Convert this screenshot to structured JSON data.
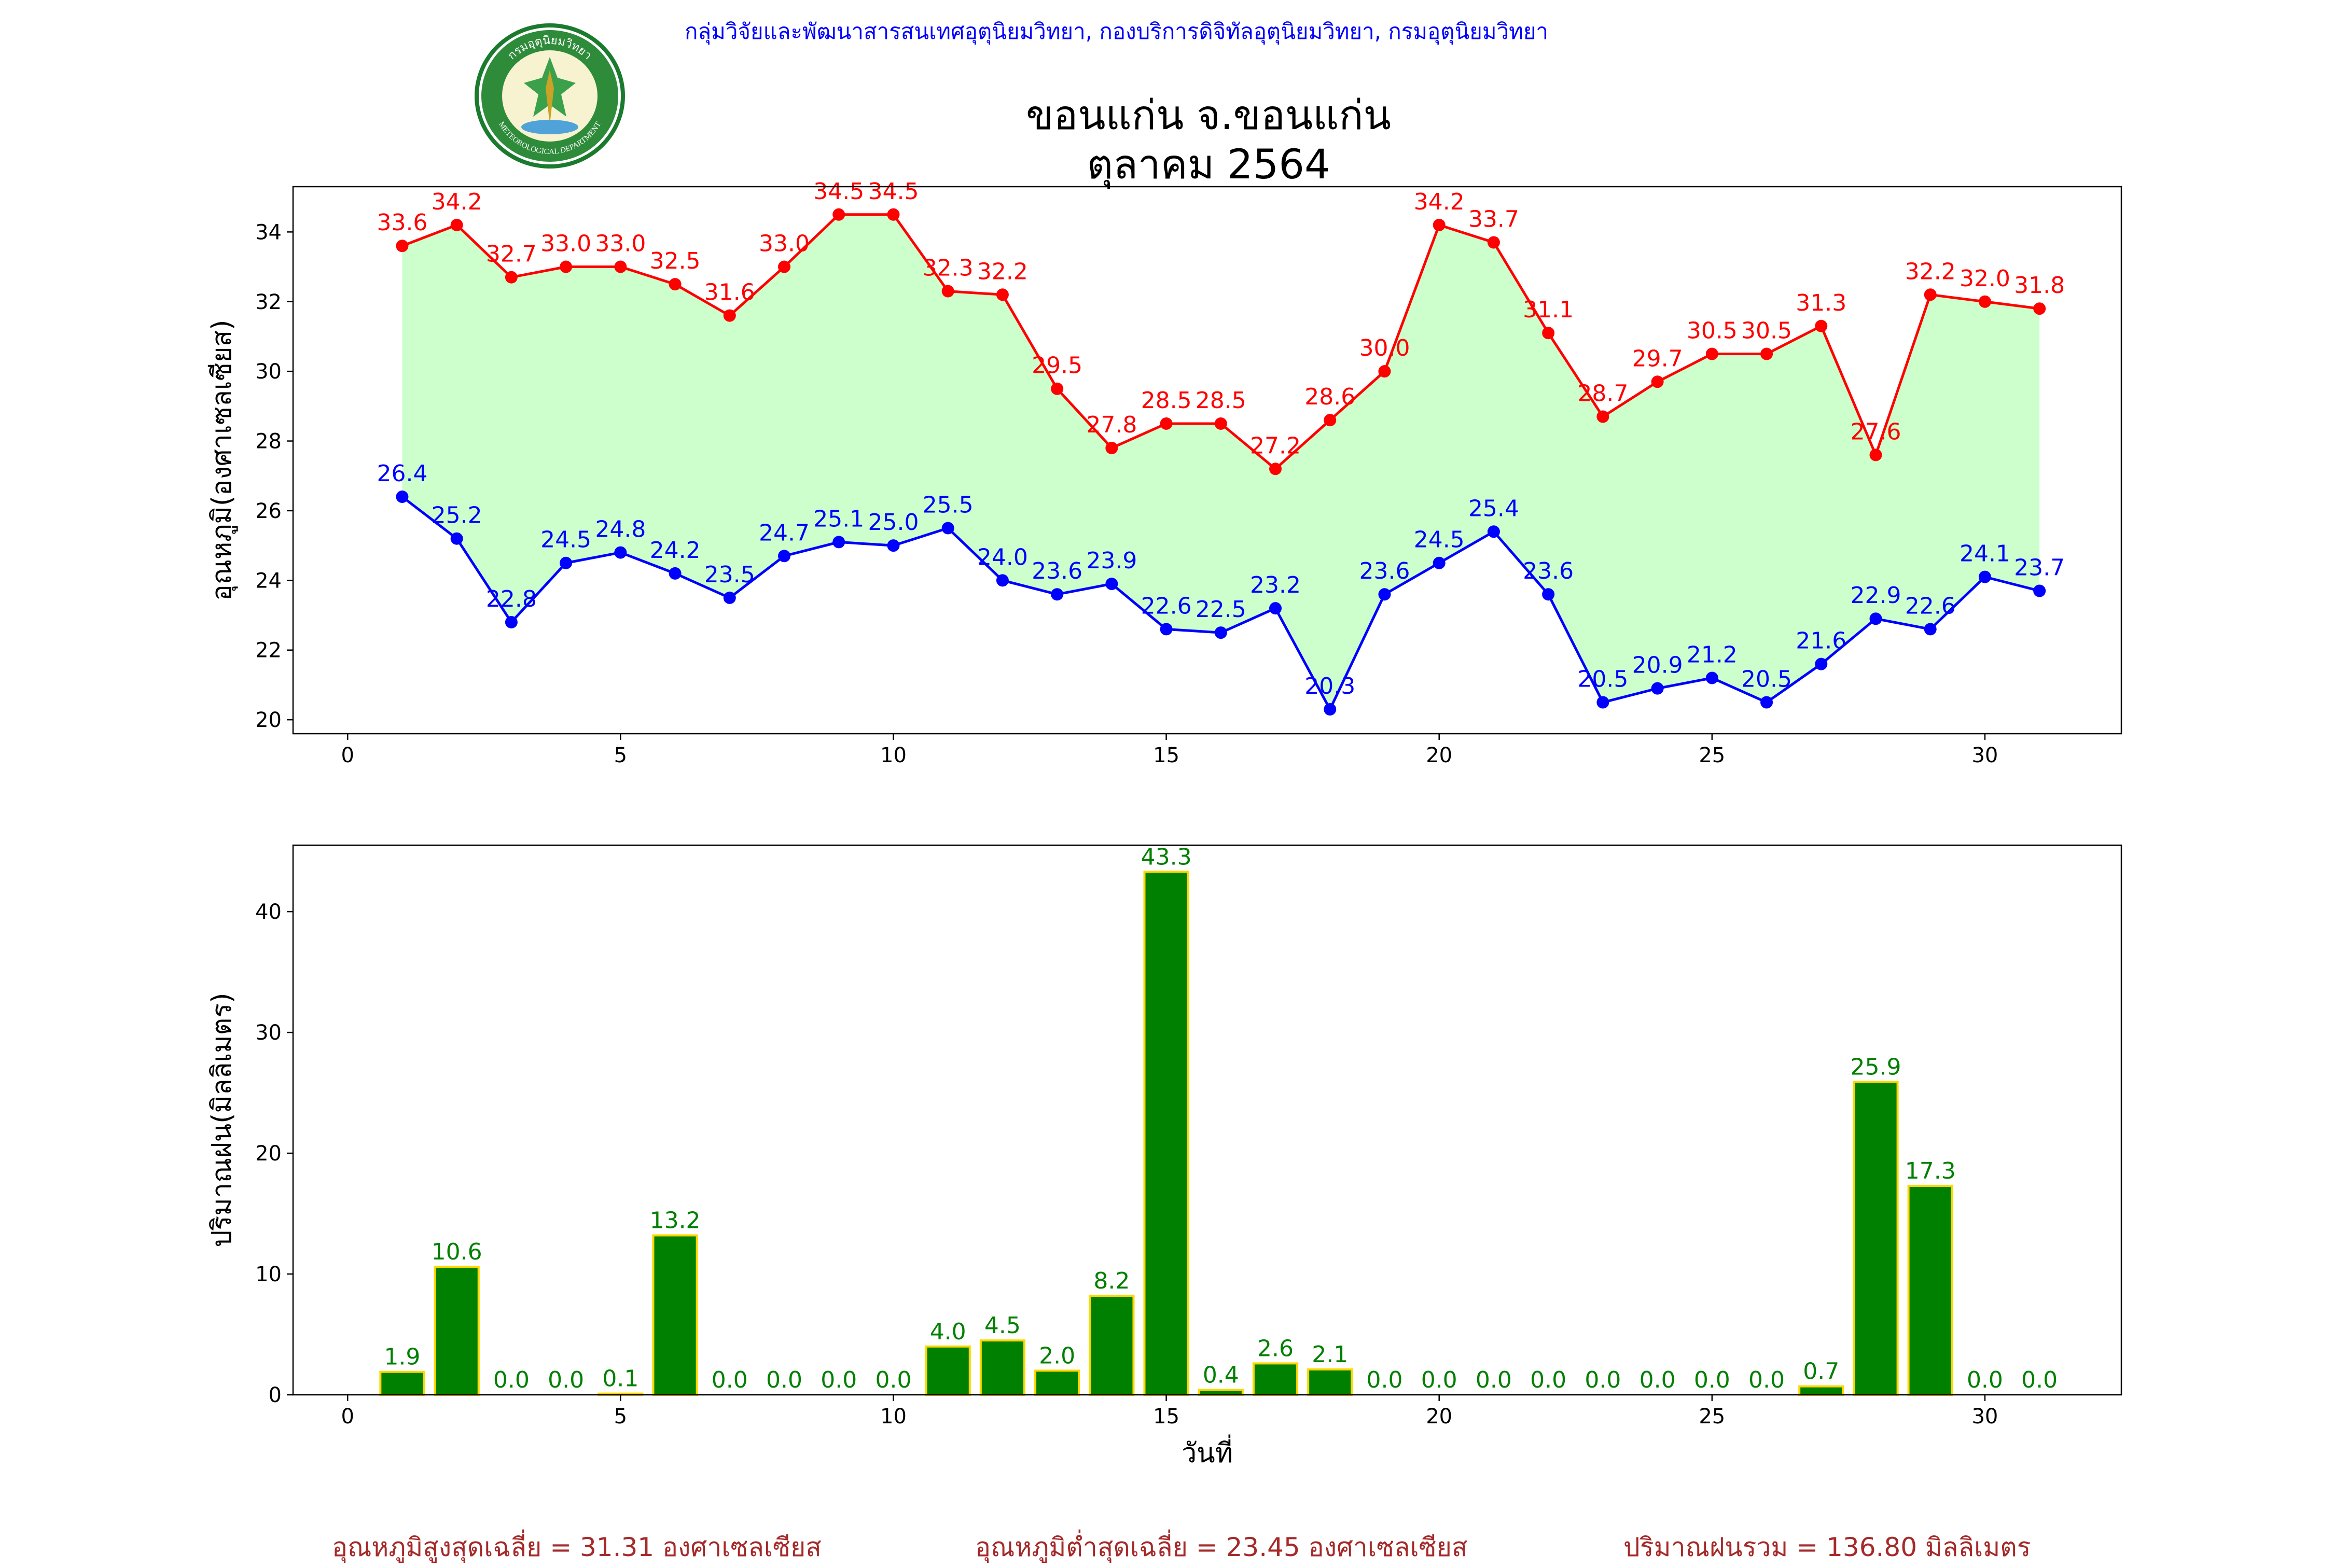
{
  "header": {
    "agency_line": "กลุ่มวิจัยและพัฒนาสารสนเทศอุตุนิยมวิทยา, กองบริการดิจิทัลอุตุนิยมวิทยา, กรมอุตุนิยมวิทยา",
    "station": "ขอนแก่น จ.ขอนแก่น",
    "month": "ตุลาคม 2564",
    "logo": {
      "top_text": "กรมอุตุนิยมวิทยา",
      "bottom_text": "METEOROLOGICAL DEPARTMENT"
    }
  },
  "footer": {
    "avg_max": "อุณหภูมิสูงสุดเฉลี่ย = 31.31 องศาเซลเซียส",
    "avg_min": "อุณหภูมิต่ำสุดเฉลี่ย = 23.45 องศาเซลเซียส",
    "total_rain": "ปริมาณฝนรวม = 136.80 มิลลิเมตร"
  },
  "chart_data": [
    {
      "type": "line",
      "ylabel": "อุณหภูมิ(องศาเซลเซียส)",
      "xlabel": "",
      "xlim": [
        -1,
        32.5
      ],
      "ylim": [
        19.6,
        35.3
      ],
      "xticks": [
        0,
        5,
        10,
        15,
        20,
        25,
        30
      ],
      "yticks": [
        20,
        22,
        24,
        26,
        28,
        30,
        32,
        34
      ],
      "x": [
        1,
        2,
        3,
        4,
        5,
        6,
        7,
        8,
        9,
        10,
        11,
        12,
        13,
        14,
        15,
        16,
        17,
        18,
        19,
        20,
        21,
        22,
        23,
        24,
        25,
        26,
        27,
        28,
        29,
        30,
        31
      ],
      "fill_between": true,
      "fill_color": "#ccffcc",
      "series": [
        {
          "color": "#ff0000",
          "values": [
            33.6,
            34.2,
            32.7,
            33.0,
            33.0,
            32.5,
            31.6,
            33.0,
            34.5,
            34.5,
            32.3,
            32.2,
            29.5,
            27.8,
            28.5,
            28.5,
            27.2,
            28.6,
            30.0,
            34.2,
            33.7,
            31.1,
            28.7,
            29.7,
            30.5,
            30.5,
            31.3,
            27.6,
            32.2,
            32.0,
            31.8
          ]
        },
        {
          "color": "#0000ff",
          "values": [
            26.4,
            25.2,
            22.8,
            24.5,
            24.8,
            24.2,
            23.5,
            24.7,
            25.1,
            25.0,
            25.5,
            24.0,
            23.6,
            23.9,
            22.6,
            22.5,
            23.2,
            20.3,
            23.6,
            24.5,
            25.4,
            23.6,
            20.5,
            20.9,
            21.2,
            20.5,
            21.6,
            22.9,
            22.6,
            24.1,
            23.7
          ]
        }
      ]
    },
    {
      "type": "bar",
      "ylabel": "ปริมาณฝน(มิลลิเมตร)",
      "xlabel": "วันที่",
      "xlim": [
        -1,
        32.5
      ],
      "ylim": [
        0,
        45.5
      ],
      "xticks": [
        0,
        5,
        10,
        15,
        20,
        25,
        30
      ],
      "yticks": [
        0,
        10,
        20,
        30,
        40
      ],
      "bar_color": "#008000",
      "edge_color": "#ffd700",
      "label_color": "#008000",
      "x": [
        1,
        2,
        3,
        4,
        5,
        6,
        7,
        8,
        9,
        10,
        11,
        12,
        13,
        14,
        15,
        16,
        17,
        18,
        19,
        20,
        21,
        22,
        23,
        24,
        25,
        26,
        27,
        28,
        29,
        30,
        31
      ],
      "values": [
        1.9,
        10.6,
        0.0,
        0.0,
        0.1,
        13.2,
        0.0,
        0.0,
        0.0,
        0.0,
        4.0,
        4.5,
        2.0,
        8.2,
        43.3,
        0.4,
        2.6,
        2.1,
        0.0,
        0.0,
        0.0,
        0.0,
        0.0,
        0.0,
        0.0,
        0.0,
        0.7,
        25.9,
        17.3,
        0.0,
        0.0
      ]
    }
  ]
}
